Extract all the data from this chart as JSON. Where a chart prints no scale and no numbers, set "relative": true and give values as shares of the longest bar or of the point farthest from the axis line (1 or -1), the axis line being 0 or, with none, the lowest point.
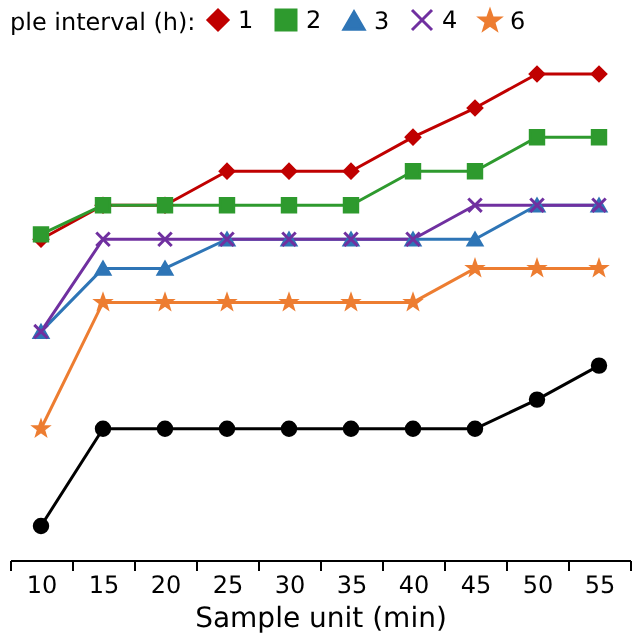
{
  "chart_data": {
    "type": "line",
    "relative": true,
    "legend_title": "ple interval (h):",
    "legend": "top",
    "grid": false,
    "xlabel": "Sample unit (min)",
    "categories": [
      "10",
      "15",
      "20",
      "25",
      "30",
      "35",
      "40",
      "45",
      "50",
      "55"
    ],
    "series": [
      {
        "name": "1",
        "color": "#c00000",
        "marker": "diamond",
        "values": [
          0.66,
          0.73,
          0.73,
          0.8,
          0.8,
          0.8,
          0.87,
          0.93,
          1,
          1
        ]
      },
      {
        "name": "2",
        "color": "#2e9a2e",
        "marker": "square",
        "values": [
          0.67,
          0.73,
          0.73,
          0.73,
          0.73,
          0.73,
          0.8,
          0.8,
          0.87,
          0.87
        ]
      },
      {
        "name": "3",
        "color": "#2e75b6",
        "marker": "triangle",
        "values": [
          0.47,
          0.6,
          0.6,
          0.66,
          0.66,
          0.66,
          0.66,
          0.66,
          0.73,
          0.73
        ]
      },
      {
        "name": "4",
        "color": "#7030a0",
        "marker": "cross",
        "values": [
          0.47,
          0.66,
          0.66,
          0.66,
          0.66,
          0.66,
          0.66,
          0.73,
          0.73,
          0.73
        ]
      },
      {
        "name": "6",
        "color": "#ed7d31",
        "marker": "star",
        "values": [
          0.27,
          0.53,
          0.53,
          0.53,
          0.53,
          0.53,
          0.53,
          0.6,
          0.6,
          0.6
        ]
      },
      {
        "color": "#000000",
        "marker": "circle",
        "values": [
          0.07,
          0.27,
          0.27,
          0.27,
          0.27,
          0.27,
          0.27,
          0.27,
          0.33,
          0.4
        ]
      }
    ]
  }
}
